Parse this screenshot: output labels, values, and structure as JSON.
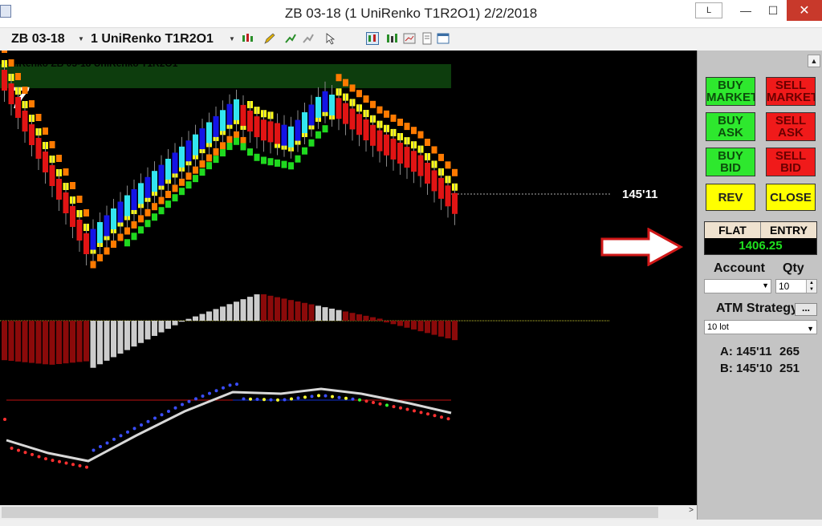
{
  "window": {
    "title": "ZB 03-18 (1 UniRenko T1R2O1)  2/2/2018",
    "buttons": {
      "layout_label": "L",
      "minimize_glyph": "—",
      "maximize_glyph": "☐",
      "close_glyph": "✕"
    }
  },
  "toolbar": {
    "instrument": "ZB 03-18",
    "bar_type": "1 UniRenko T1R2O1",
    "icons": [
      "bar-style-icon",
      "draw-pencil-icon",
      "add-indicator-icon",
      "strategy-icon",
      "pointer-icon",
      "chart-trader-icon",
      "data-series-icon",
      "properties-icon",
      "template-icon",
      "window-icon"
    ]
  },
  "chart": {
    "last_price_label": "145'11",
    "overlay_text": "UniRenko ZB 03-18 UniRenko T1R2O1",
    "corner_mark": "7",
    "colors": {
      "background": "#000000",
      "up_cyan": "#33e6f0",
      "up_blue": "#1414e6",
      "down_red": "#e11414",
      "band_yellow": "#ffff14",
      "band_orange": "#ff7a00",
      "band_green": "#1fd91f",
      "histo_red": "#8b0a0a",
      "histo_gray": "#cccccc"
    }
  },
  "trade_panel": {
    "buy_market": [
      "BUY",
      "MARKET"
    ],
    "sell_market": [
      "SELL",
      "MARKET"
    ],
    "buy_ask": [
      "BUY",
      "ASK"
    ],
    "sell_ask": [
      "SELL",
      "ASK"
    ],
    "buy_bid": [
      "BUY",
      "BID"
    ],
    "sell_bid": [
      "SELL",
      "BID"
    ],
    "rev": "REV",
    "close": "CLOSE",
    "position_status": "FLAT",
    "entry_label": "ENTRY",
    "pnl_value": "1406.25",
    "account_label": "Account",
    "qty_label": "Qty",
    "qty_value": "10",
    "atm_label": "ATM Strategy",
    "atm_ellipsis": "...",
    "atm_value": "10 lot",
    "ask_label": "A: 145'11",
    "ask_size": "265",
    "bid_label": "B: 145'10",
    "bid_size": "251"
  }
}
